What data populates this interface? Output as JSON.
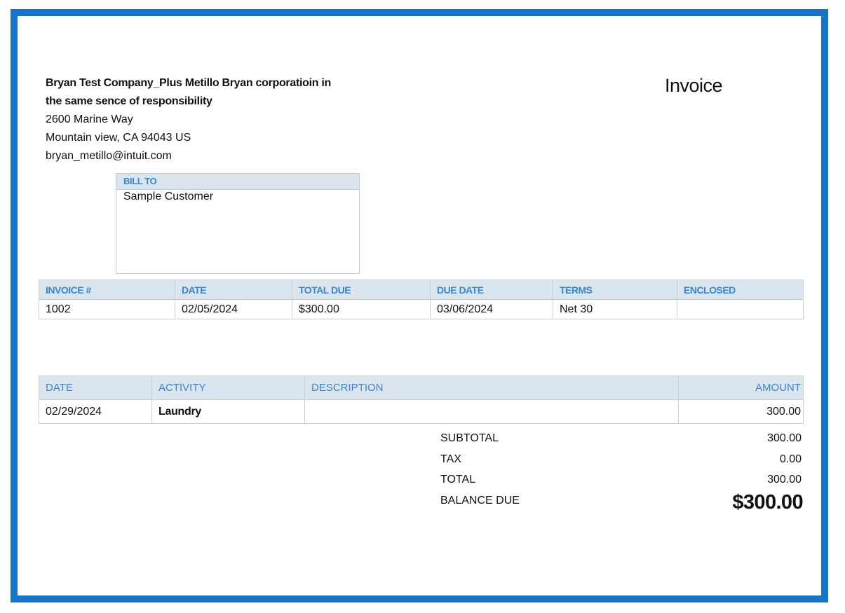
{
  "company": {
    "name_line1": "Bryan Test Company_Plus Metillo Bryan corporatioin in",
    "name_line2": "the same sence of responsibility",
    "address1": "2600 Marine Way",
    "address2": "Mountain view, CA  94043 US",
    "email": "bryan_metillo@intuit.com"
  },
  "document_title": "Invoice",
  "bill_to": {
    "label": "BILL TO",
    "value": "Sample Customer"
  },
  "invoice_info": {
    "headers": [
      "INVOICE #",
      "DATE",
      "TOTAL DUE",
      "DUE DATE",
      "TERMS",
      "ENCLOSED"
    ],
    "values": [
      "1002",
      "02/05/2024",
      "$300.00",
      "03/06/2024",
      "Net 30",
      ""
    ]
  },
  "line_items": {
    "headers": {
      "date": "DATE",
      "activity": "ACTIVITY",
      "description": "DESCRIPTION",
      "amount": "AMOUNT"
    },
    "rows": [
      {
        "date": "02/29/2024",
        "activity": "Laundry",
        "description": "",
        "amount": "300.00"
      }
    ]
  },
  "totals": {
    "subtotal_label": "SUBTOTAL",
    "subtotal": "300.00",
    "tax_label": "TAX",
    "tax": "0.00",
    "total_label": "TOTAL",
    "total": "300.00",
    "balance_due_label": "BALANCE DUE",
    "balance_due": "$300.00"
  },
  "colors": {
    "frame": "#1674c9",
    "header_bg": "#dae5ee",
    "header_text": "#3d85c6"
  }
}
